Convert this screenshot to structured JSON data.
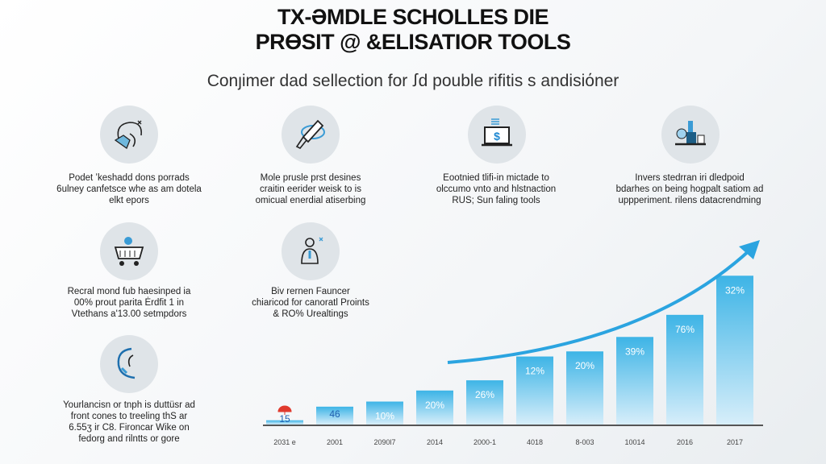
{
  "header": {
    "title_line1": "TX-ƏMDLE SCHOLLES DIE",
    "title_line2": "PRϴSIT @ &ELISATIOR TOOLS",
    "subtitle": "Conȷimer dad sellection for ꭍd pouble rifitis s andisiόner"
  },
  "features": [
    {
      "icon": "globe-hand-icon",
      "text": [
        "Podet ʼkeshadd dons porrads",
        "6ulney canfetsce whe as am dotela",
        "elkt epors"
      ]
    },
    {
      "icon": "rocket-icon",
      "text": [
        "Mole prusle prst desines",
        "craitin eerider weisk to is",
        "omicual enerdial atiserbing"
      ]
    },
    {
      "icon": "laptop-dollar-icon",
      "text": [
        "Eootnied tlifi-in mictade to",
        "olccumo vnto and hlstnaction",
        "RUS; Sun faling tools"
      ]
    },
    {
      "icon": "tools-desk-icon",
      "text": [
        "Invers stedrran iri dledpoid",
        "bdarhes on being hogpalt satiom ad",
        "uppperiment. rilens datacrendming"
      ]
    },
    {
      "icon": "cart-icon",
      "text": [
        "Recral mond fub haesinped ia",
        "00% prout parita Ėrdfit 1 in",
        "Vtethans a'13.00 setmpdors"
      ]
    },
    {
      "icon": "user-tools-icon",
      "text": [
        "Biv rernen Fauncer",
        "chiaricod for canoratl Proints",
        "& RO% Urealtings"
      ]
    },
    {
      "icon": "funnel-person-icon",
      "text": [
        "Yourlancisn or tnph is duttüsr ad",
        "front cones to treeling thS ar",
        "6.55ʒ ir C8. Fironcar Wike on",
        "fedorg and rilntts or gore"
      ]
    }
  ],
  "chart_data": {
    "type": "bar",
    "title": "",
    "xlabel": "",
    "ylabel": "",
    "categories": [
      "2031 e",
      "2001",
      "2090l7",
      "2014",
      "2000-1",
      "4018",
      "8-003",
      "10014",
      "2016",
      "2017"
    ],
    "values": [
      5,
      21,
      27,
      40,
      52,
      80,
      86,
      103,
      129,
      175
    ],
    "data_labels": [
      "15",
      "46",
      "10%",
      "20%",
      "26%",
      "12%",
      "20%",
      "39%",
      "76%",
      "32%"
    ],
    "ylim": [
      0,
      180
    ],
    "grid": false,
    "trend_arrow": true,
    "colors": {
      "bar_top": "#3db4e6",
      "bar_bottom": "#d7eefa",
      "arrow": "#2ba4e0",
      "marker": "#e03a2e"
    }
  }
}
